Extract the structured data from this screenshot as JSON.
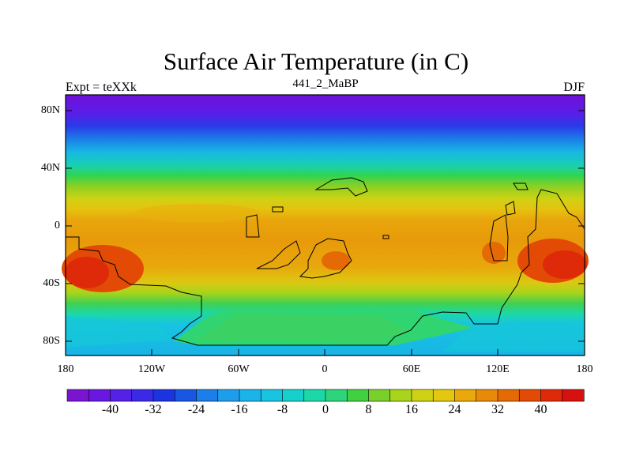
{
  "title": "Surface Air Temperature (in C)",
  "left_label": "Expt = teXXk",
  "center_label": "441_2_MaBP",
  "right_label": "DJF",
  "latitude_labels": [
    "80N",
    "40N",
    "0",
    "40S",
    "80S"
  ],
  "longitude_labels": [
    "180",
    "120W",
    "60W",
    "0",
    "60E",
    "120E",
    "180"
  ],
  "colorbar": {
    "labels": [
      "-40",
      "-32",
      "-24",
      "-16",
      "-8",
      "0",
      "8",
      "16",
      "24",
      "32",
      "40"
    ],
    "colors": [
      "#7a14d0",
      "#6818e0",
      "#5520e8",
      "#3a2ae8",
      "#1b34e0",
      "#1a56e4",
      "#1c7ee8",
      "#1e9eea",
      "#1ab4e8",
      "#18c4e0",
      "#16d0cc",
      "#1cd8a8",
      "#2ed47a",
      "#40d040",
      "#7ad02a",
      "#a8d41c",
      "#cfd214",
      "#e4c810",
      "#eaa80c",
      "#e88a08",
      "#e56a06",
      "#e24a06",
      "#de2a08",
      "#d81010"
    ]
  }
}
